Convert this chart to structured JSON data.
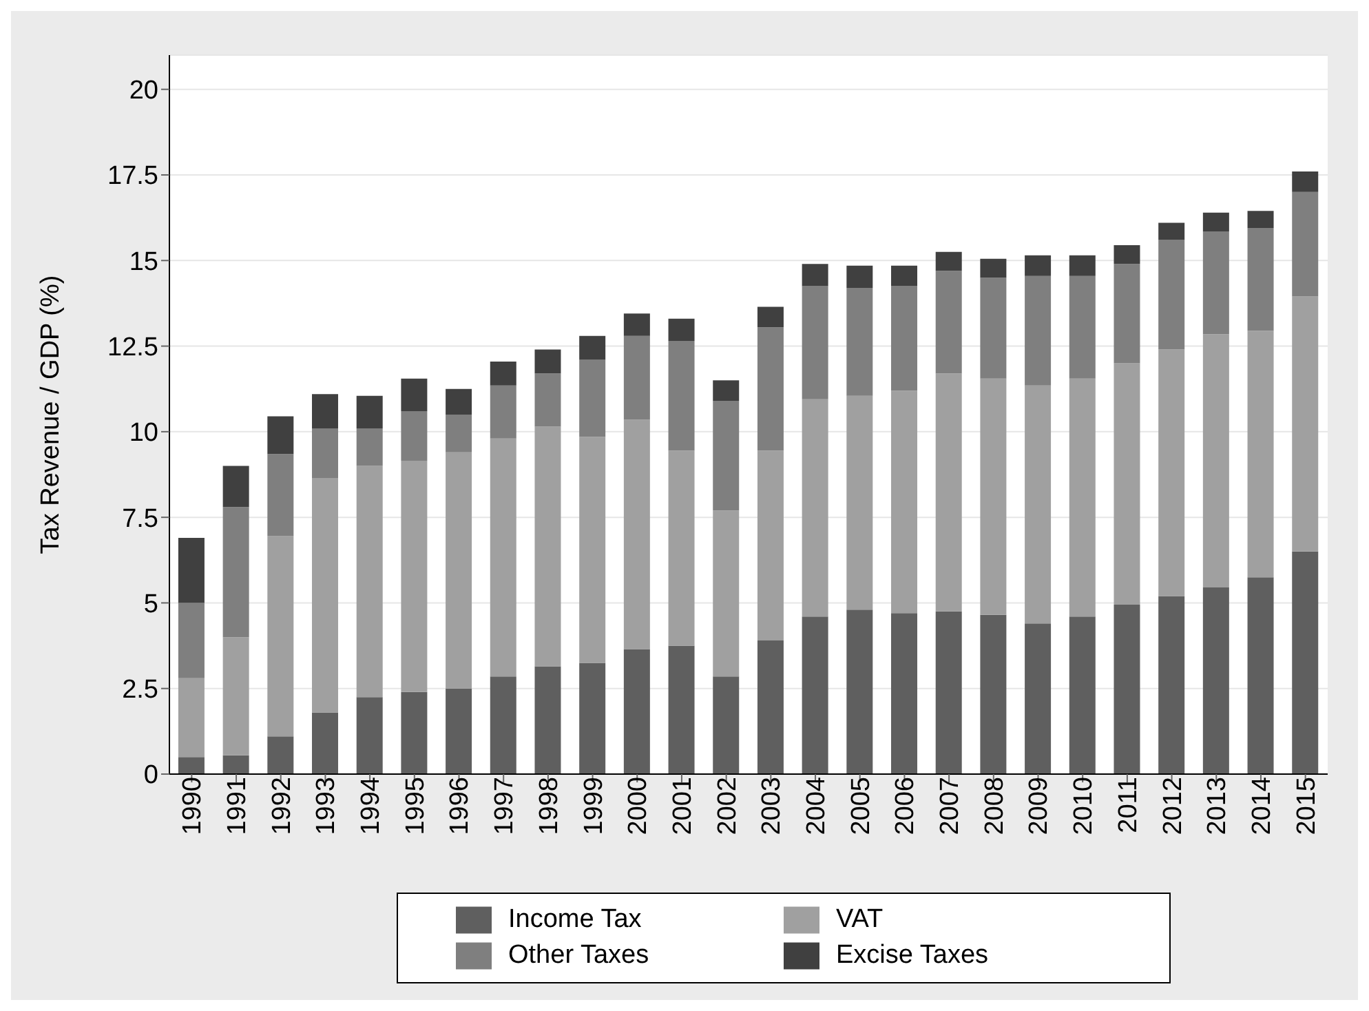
{
  "chart_data": {
    "type": "bar",
    "stacked": true,
    "ylabel": "Tax Revenue / GDP (%)",
    "categories": [
      "1990",
      "1991",
      "1992",
      "1993",
      "1994",
      "1995",
      "1996",
      "1997",
      "1998",
      "1999",
      "2000",
      "2001",
      "2002",
      "2003",
      "2004",
      "2005",
      "2006",
      "2007",
      "2008",
      "2009",
      "2010",
      "2011",
      "2012",
      "2013",
      "2014",
      "2015"
    ],
    "series": [
      {
        "name": "Income Tax",
        "color": "#5f5f5f",
        "values": [
          0.5,
          0.55,
          1.1,
          1.8,
          2.25,
          2.4,
          2.5,
          2.85,
          3.15,
          3.25,
          3.65,
          3.75,
          2.85,
          3.9,
          4.6,
          4.8,
          4.7,
          4.75,
          4.65,
          4.4,
          4.6,
          4.95,
          5.2,
          5.45,
          5.75,
          6.5
        ]
      },
      {
        "name": "VAT",
        "color": "#a0a0a0",
        "values": [
          2.3,
          3.45,
          5.85,
          6.85,
          6.75,
          6.75,
          6.9,
          6.95,
          7.0,
          6.6,
          6.7,
          5.7,
          4.85,
          5.55,
          6.35,
          6.25,
          6.5,
          6.95,
          6.9,
          6.95,
          6.95,
          7.05,
          7.2,
          7.4,
          7.2,
          7.45
        ]
      },
      {
        "name": "Other Taxes",
        "color": "#7f7f7f",
        "values": [
          2.2,
          3.8,
          2.4,
          1.45,
          1.1,
          1.45,
          1.1,
          1.55,
          1.55,
          2.25,
          2.45,
          3.2,
          3.2,
          3.6,
          3.3,
          3.15,
          3.05,
          3.0,
          2.95,
          3.2,
          3.0,
          2.9,
          3.2,
          3.0,
          3.0,
          3.05
        ]
      },
      {
        "name": "Excise Taxes",
        "color": "#404040",
        "values": [
          1.9,
          1.2,
          1.1,
          1.0,
          0.95,
          0.95,
          0.75,
          0.7,
          0.7,
          0.7,
          0.65,
          0.65,
          0.6,
          0.6,
          0.65,
          0.65,
          0.6,
          0.55,
          0.55,
          0.6,
          0.6,
          0.55,
          0.5,
          0.55,
          0.5,
          0.6
        ]
      }
    ],
    "ylim": [
      0,
      21
    ],
    "yticks": [
      0,
      2.5,
      5,
      7.5,
      10,
      12.5,
      15,
      17.5,
      20
    ],
    "grid": "y",
    "legend": "bottom"
  }
}
